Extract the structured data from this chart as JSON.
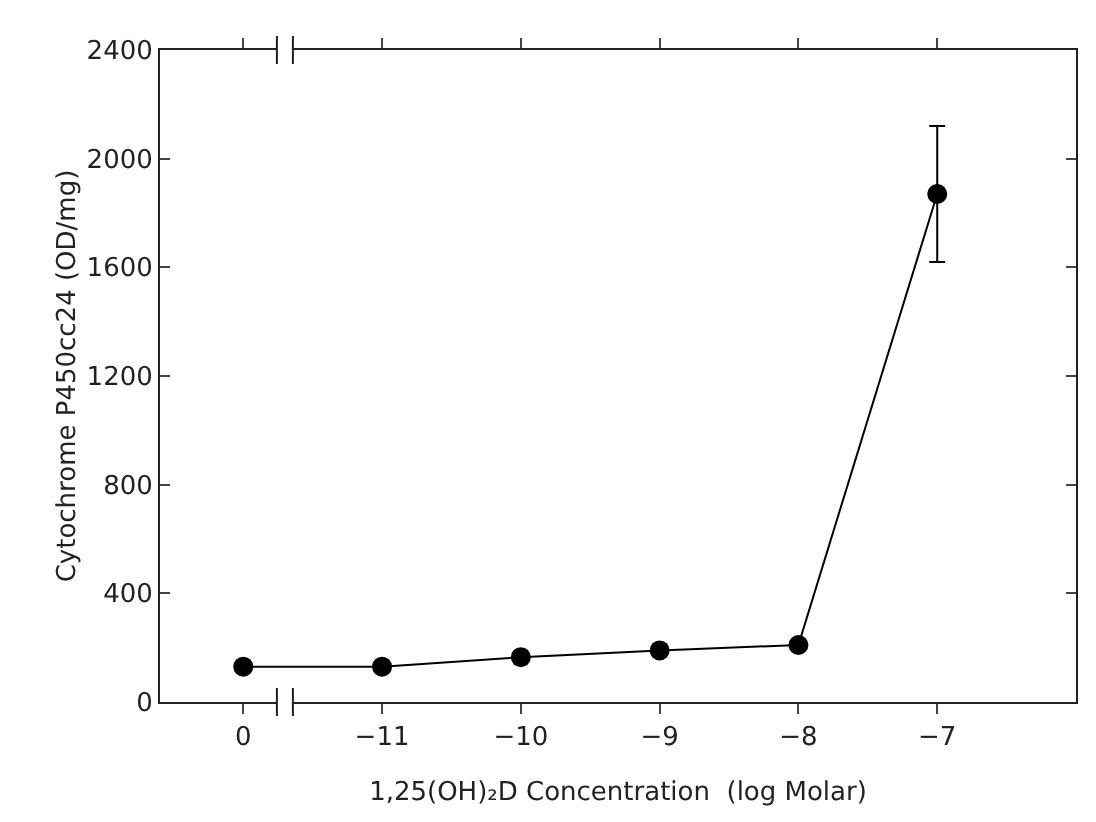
{
  "chart_data": {
    "type": "line",
    "xlabel": "1,25(OH)₂D Concentration  (log Molar)",
    "ylabel": "Cytochrome P450cc24 (OD/mg)",
    "categories": [
      "0",
      "−11",
      "−10",
      "−9",
      "−8",
      "−7"
    ],
    "series": [
      {
        "color": "#000000",
        "values": [
          130,
          130,
          165,
          190,
          210,
          1870
        ],
        "errors": [
          null,
          null,
          null,
          null,
          null,
          [
            1620,
            2120
          ]
        ]
      }
    ],
    "ylim": [
      0,
      2400
    ],
    "yticks": [
      0,
      400,
      800,
      1200,
      1600,
      2000,
      2400
    ],
    "marker": "circle",
    "line_style": "solid"
  }
}
